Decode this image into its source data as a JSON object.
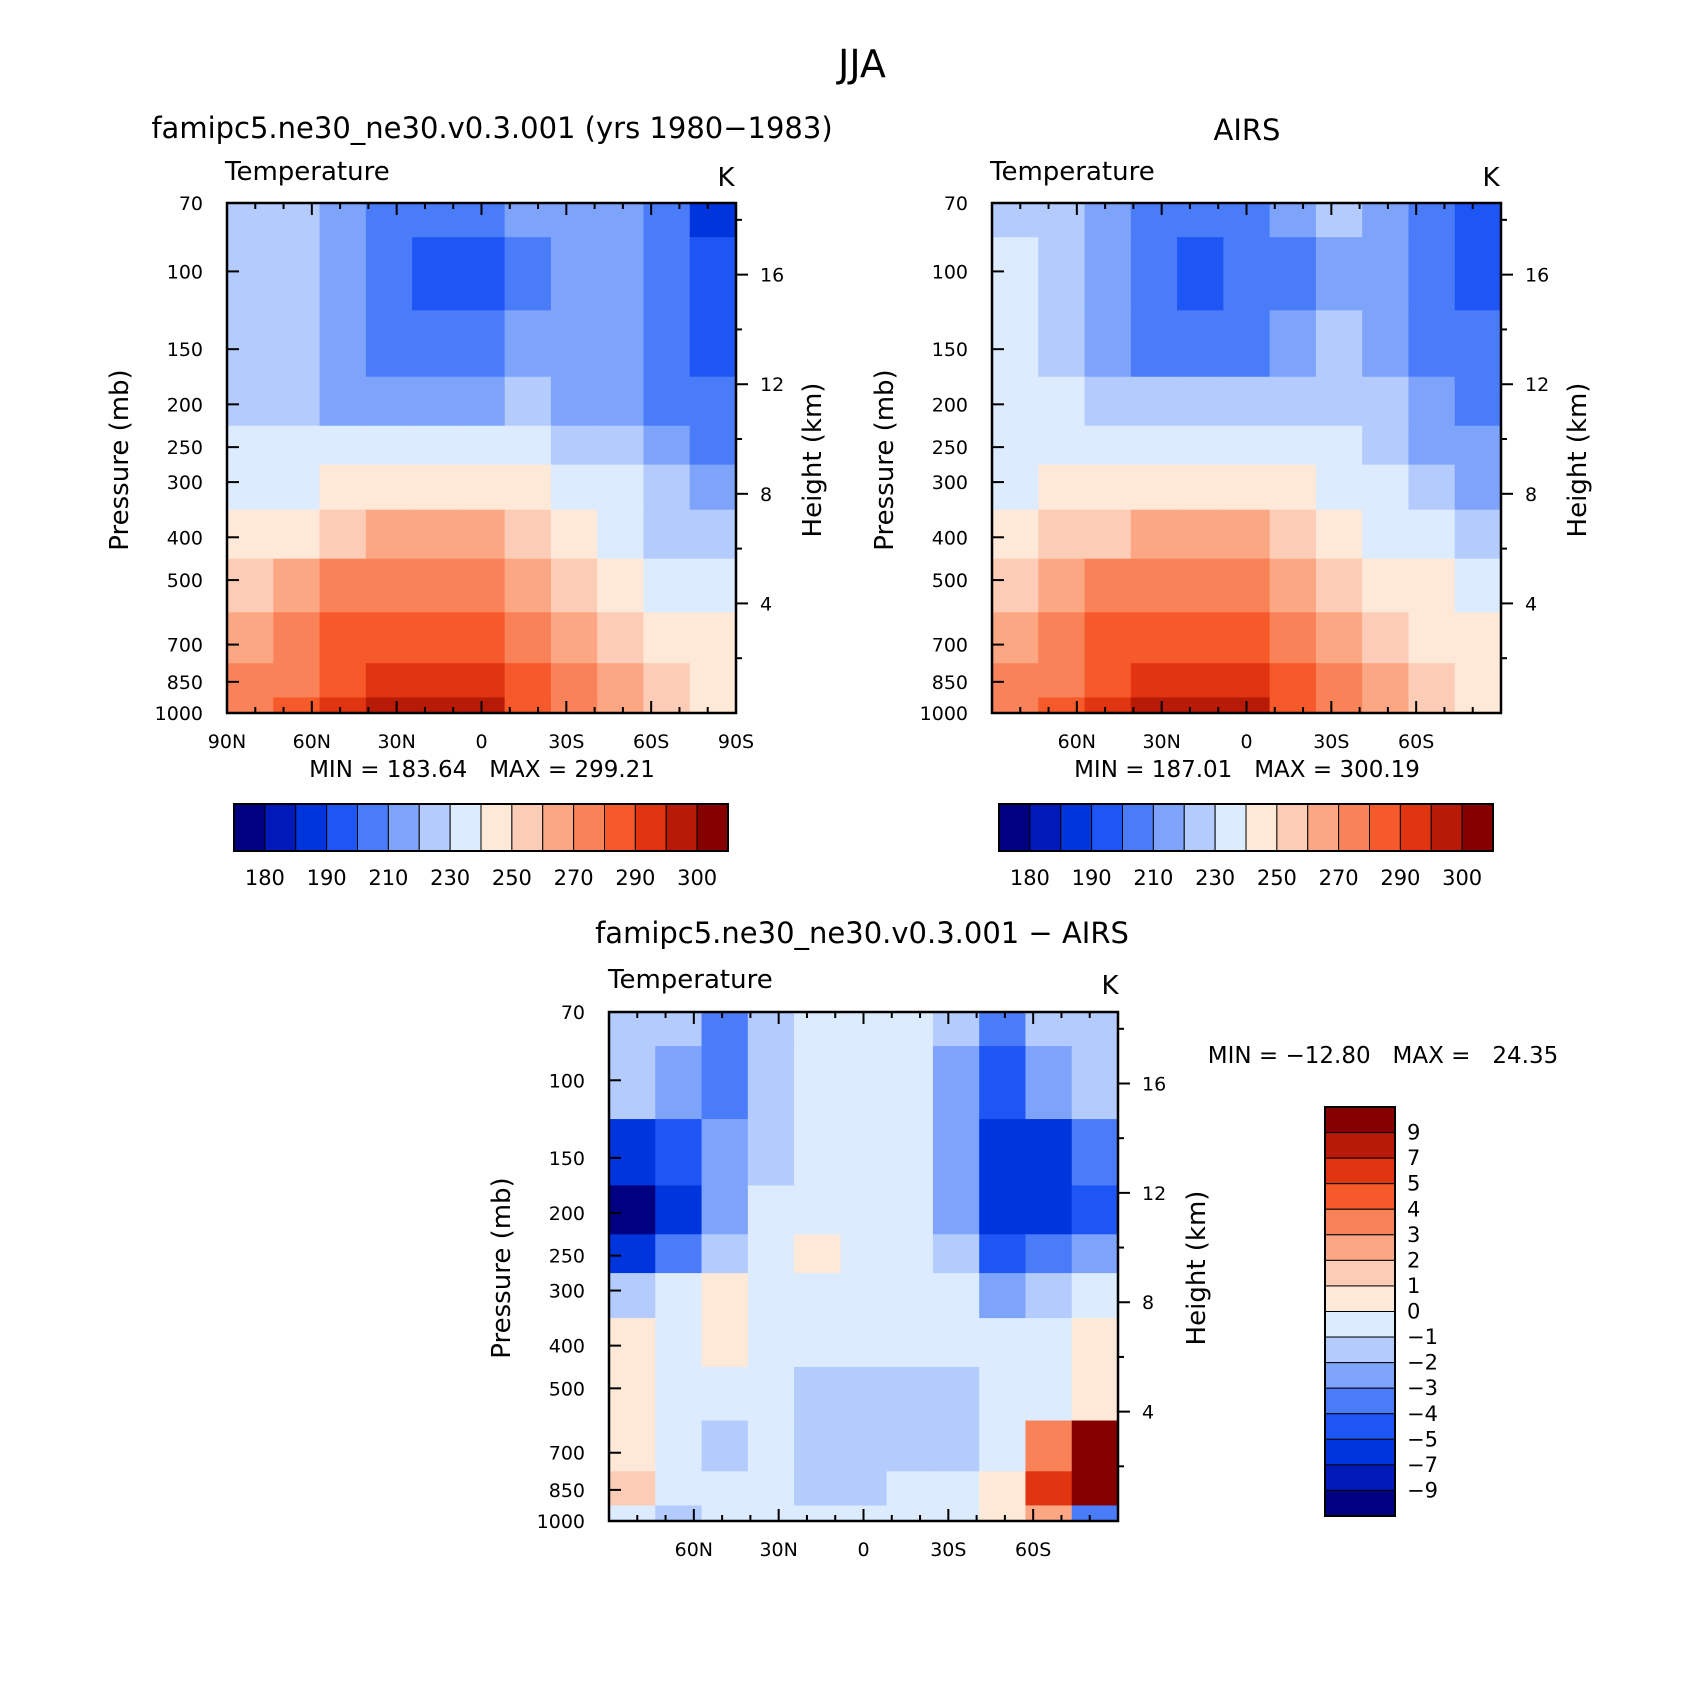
{
  "figure": {
    "title": "JJA"
  },
  "palette": [
    "#000080",
    "#0019B8",
    "#0035DD",
    "#1E56F5",
    "#4A7CF9",
    "#7EA3FB",
    "#B3CBFD",
    "#DCEBFD",
    "#FEE9D9",
    "#FDCCB6",
    "#FBA784",
    "#F98258",
    "#F65A2A",
    "#E03510",
    "#B81A08",
    "#860000"
  ],
  "panels": [
    {
      "id": "model",
      "title": "famipc5.ne30_ne30.v0.3.001 (yrs 1980−1983)",
      "variable": "Temperature",
      "units": "K",
      "stats": "MIN = 183.64   MAX = 299.21",
      "colorbar_labels": [
        "180",
        "190",
        "210",
        "230",
        "250",
        "270",
        "290",
        "300"
      ]
    },
    {
      "id": "obs",
      "title": "AIRS",
      "variable": "Temperature",
      "units": "K",
      "stats": "MIN = 187.01   MAX = 300.19",
      "colorbar_labels": [
        "180",
        "190",
        "210",
        "230",
        "250",
        "270",
        "290",
        "300"
      ]
    },
    {
      "id": "diff",
      "title": "famipc5.ne30_ne30.v0.3.001 − AIRS",
      "variable": "Temperature",
      "units": "K",
      "stats": "MIN = −12.80   MAX =   24.35",
      "colorbar_labels": [
        "9",
        "7",
        "5",
        "4",
        "3",
        "2",
        "1",
        "0",
        "−1",
        "−2",
        "−3",
        "−4",
        "−5",
        "−7",
        "−9"
      ]
    }
  ],
  "axes": {
    "ylabel": "Pressure (mb)",
    "y2label": "Height (km)",
    "pressure_ticks": [
      "70",
      "100",
      "150",
      "200",
      "250",
      "300",
      "400",
      "500",
      "700",
      "850",
      "1000"
    ],
    "height_ticks": [
      "16",
      "12",
      "8",
      "4"
    ],
    "lat_ticks_full": [
      "90N",
      "60N",
      "30N",
      "0",
      "30S",
      "60S",
      "90S"
    ],
    "lat_ticks_inner": [
      "60N",
      "30N",
      "0",
      "30S",
      "60S"
    ]
  },
  "chart_data": [
    {
      "type": "heatmap",
      "title": "famipc5.ne30_ne30.v0.3.001 (yrs 1980−1983)",
      "xlabel": "",
      "ylabel": "Pressure (mb)",
      "x": [
        "90N",
        "60N",
        "30N",
        "0",
        "30S",
        "60S",
        "90S"
      ],
      "y": [
        70,
        100,
        150,
        200,
        250,
        300,
        400,
        500,
        700,
        850,
        1000
      ],
      "xlim": [
        90,
        -90
      ],
      "ylim": [
        1000,
        70
      ],
      "y_scale": "log",
      "levels": [
        180,
        185,
        190,
        200,
        210,
        220,
        230,
        240,
        250,
        260,
        270,
        280,
        290,
        295,
        300
      ],
      "zmin": 183.64,
      "zmax": 299.21,
      "values": [
        [
          226,
          226,
          216,
          206,
          206,
          206,
          211,
          216,
          211,
          201,
          186
        ],
        [
          226,
          226,
          216,
          201,
          196,
          196,
          206,
          216,
          211,
          201,
          191
        ],
        [
          226,
          226,
          216,
          206,
          206,
          206,
          211,
          216,
          211,
          201,
          196
        ],
        [
          226,
          221,
          216,
          216,
          216,
          216,
          221,
          216,
          211,
          206,
          201
        ],
        [
          231,
          231,
          231,
          236,
          236,
          236,
          231,
          226,
          221,
          211,
          206
        ],
        [
          236,
          236,
          241,
          246,
          246,
          246,
          241,
          236,
          231,
          221,
          211
        ],
        [
          246,
          246,
          256,
          261,
          261,
          261,
          256,
          246,
          236,
          226,
          221
        ],
        [
          256,
          261,
          271,
          276,
          276,
          276,
          266,
          256,
          246,
          236,
          231
        ],
        [
          266,
          271,
          281,
          286,
          286,
          286,
          276,
          266,
          256,
          246,
          241
        ],
        [
          271,
          276,
          286,
          291,
          291,
          291,
          281,
          271,
          261,
          251,
          246
        ],
        [
          276,
          281,
          291,
          296,
          298,
          296,
          286,
          276,
          266,
          256,
          246
        ]
      ]
    },
    {
      "type": "heatmap",
      "title": "AIRS",
      "xlabel": "",
      "ylabel": "Pressure (mb)",
      "x": [
        "60N",
        "30N",
        "0",
        "30S",
        "60S"
      ],
      "y": [
        70,
        100,
        150,
        200,
        250,
        300,
        400,
        500,
        700,
        850,
        1000
      ],
      "xlim": [
        90,
        -90
      ],
      "ylim": [
        1000,
        70
      ],
      "y_scale": "log",
      "levels": [
        180,
        185,
        190,
        200,
        210,
        220,
        230,
        240,
        250,
        260,
        270,
        280,
        290,
        295,
        300
      ],
      "zmin": 187.01,
      "zmax": 300.19,
      "values": [
        [
          226,
          226,
          216,
          206,
          206,
          206,
          216,
          221,
          216,
          206,
          196
        ],
        [
          231,
          226,
          211,
          201,
          196,
          201,
          206,
          216,
          216,
          206,
          196
        ],
        [
          236,
          226,
          216,
          206,
          206,
          206,
          211,
          221,
          216,
          206,
          201
        ],
        [
          236,
          231,
          226,
          221,
          221,
          221,
          226,
          226,
          221,
          211,
          206
        ],
        [
          236,
          236,
          236,
          236,
          236,
          236,
          236,
          231,
          226,
          216,
          211
        ],
        [
          236,
          241,
          246,
          246,
          246,
          246,
          241,
          236,
          231,
          221,
          216
        ],
        [
          246,
          251,
          256,
          261,
          261,
          261,
          256,
          246,
          236,
          231,
          226
        ],
        [
          256,
          261,
          271,
          276,
          276,
          276,
          266,
          256,
          246,
          241,
          236
        ],
        [
          266,
          271,
          281,
          286,
          286,
          286,
          276,
          266,
          256,
          246,
          241
        ],
        [
          271,
          276,
          286,
          291,
          291,
          291,
          281,
          271,
          261,
          251,
          246
        ],
        [
          276,
          281,
          291,
          296,
          299,
          296,
          286,
          276,
          266,
          256,
          246
        ]
      ]
    },
    {
      "type": "heatmap",
      "title": "famipc5.ne30_ne30.v0.3.001 − AIRS",
      "xlabel": "",
      "ylabel": "Pressure (mb)",
      "x": [
        "60N",
        "30N",
        "0",
        "30S",
        "60S"
      ],
      "y": [
        70,
        100,
        150,
        200,
        250,
        300,
        400,
        500,
        700,
        850,
        1000
      ],
      "xlim": [
        90,
        -90
      ],
      "ylim": [
        1000,
        70
      ],
      "y_scale": "log",
      "levels": [
        -9,
        -7,
        -5,
        -4,
        -3,
        -2,
        -1,
        0,
        1,
        2,
        3,
        4,
        5,
        7,
        9
      ],
      "zmin": -12.8,
      "zmax": 24.35,
      "values": [
        [
          -1.5,
          -1.5,
          -3.5,
          -1.5,
          -0.5,
          -0.5,
          -0.5,
          -1.5,
          -3.5,
          -1.5,
          -1.5
        ],
        [
          -1.5,
          -2.5,
          -3.5,
          -1.5,
          -0.5,
          -0.5,
          -0.5,
          -2.5,
          -4.5,
          -2.5,
          -1.5
        ],
        [
          -6,
          -4.5,
          -2.5,
          -1.5,
          -0.5,
          -0.5,
          -0.5,
          -2.5,
          -6,
          -6,
          -3.5
        ],
        [
          -10,
          -6,
          -2.5,
          -0.5,
          -0.5,
          -0.5,
          -0.5,
          -2.5,
          -6,
          -6,
          -4.5
        ],
        [
          -6,
          -3.5,
          -1.5,
          -0.5,
          0.5,
          -0.5,
          -0.5,
          -1.5,
          -4.5,
          -3.5,
          -2.5
        ],
        [
          -1.5,
          -0.5,
          0.5,
          -0.5,
          -0.5,
          -0.5,
          -0.5,
          -0.5,
          -2.5,
          -1.5,
          -0.5
        ],
        [
          0.5,
          -0.5,
          0.5,
          -0.5,
          -0.5,
          -0.5,
          -0.5,
          -0.5,
          -0.5,
          -0.5,
          0.5
        ],
        [
          0.5,
          -0.5,
          -0.5,
          -0.5,
          -1.5,
          -1.5,
          -1.5,
          -1.5,
          -0.5,
          -0.5,
          0.5
        ],
        [
          0.5,
          -0.5,
          -1.5,
          -0.5,
          -1.5,
          -1.5,
          -1.5,
          -1.5,
          -0.5,
          3.5,
          12
        ],
        [
          1.5,
          -0.5,
          -0.5,
          -0.5,
          -1.5,
          -1.5,
          -0.5,
          -0.5,
          0.5,
          6,
          12
        ],
        [
          -0.5,
          -1.5,
          -0.5,
          -0.5,
          -0.5,
          -0.5,
          -0.5,
          -0.5,
          0.5,
          2.5,
          -3.5
        ]
      ]
    }
  ]
}
